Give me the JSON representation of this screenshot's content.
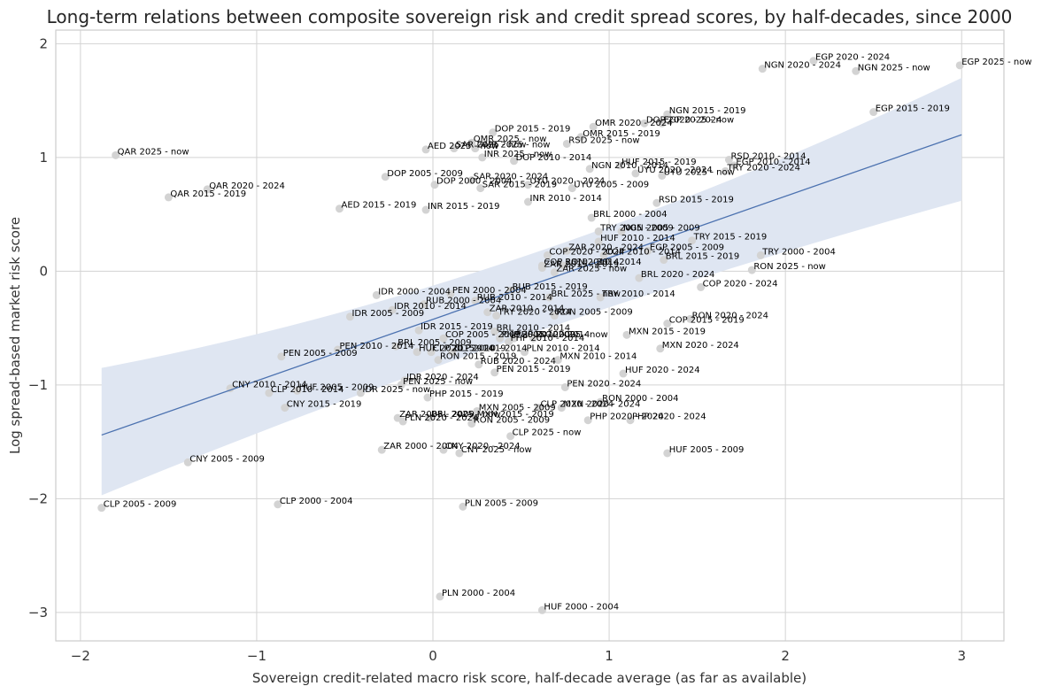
{
  "chart_data": {
    "type": "scatter",
    "title": "Long-term relations between composite sovereign risk and credit spread scores, by half-decades, since 2000",
    "xlabel": "Sovereign credit-related macro risk score, half-decade average (as far as available)",
    "ylabel": "Log spread-based market risk score",
    "xlim": [
      -2.14,
      3.24
    ],
    "ylim": [
      -3.25,
      2.12
    ],
    "xticks": [
      -2,
      -1,
      0,
      1,
      2,
      3
    ],
    "xtick_labels": [
      "−2",
      "−1",
      "0",
      "1",
      "2",
      "3"
    ],
    "yticks": [
      -3,
      -2,
      -1,
      0,
      1,
      2
    ],
    "ytick_labels": [
      "−3",
      "−2",
      "−1",
      "0",
      "1",
      "2"
    ],
    "grid": true,
    "colors": {
      "point": "#d3d3d3",
      "regression": "#4c72b0",
      "band": "#dfe6f2",
      "label": "#000000"
    },
    "regression": {
      "x": [
        -1.88,
        3.0
      ],
      "y": [
        -1.44,
        1.2
      ],
      "band_lower": [
        -1.97,
        0.62
      ],
      "band_upper": [
        -0.85,
        1.7
      ]
    },
    "points": [
      {
        "label": "EGP 2020 - 2024",
        "x": 2.16,
        "y": 1.85
      },
      {
        "label": "EGP 2025 - now",
        "x": 2.99,
        "y": 1.81
      },
      {
        "label": "NGN 2020 - 2024",
        "x": 1.87,
        "y": 1.78
      },
      {
        "label": "NGN 2025 - now",
        "x": 2.4,
        "y": 1.76
      },
      {
        "label": "NGN 2015 - 2019",
        "x": 1.33,
        "y": 1.38
      },
      {
        "label": "EGP 2015 - 2019",
        "x": 2.5,
        "y": 1.4
      },
      {
        "label": "DOP 2020 - 2024",
        "x": 1.2,
        "y": 1.3
      },
      {
        "label": "EGP 2025 - now",
        "x": 1.3,
        "y": 1.3
      },
      {
        "label": "OMR 2020 - 2024",
        "x": 0.91,
        "y": 1.27
      },
      {
        "label": "DOP 2015 - 2019",
        "x": 0.34,
        "y": 1.22
      },
      {
        "label": "OMR 2015 - 2019",
        "x": 0.84,
        "y": 1.18
      },
      {
        "label": "OMR 2025 - now",
        "x": 0.22,
        "y": 1.13
      },
      {
        "label": "RSD 2025 - now",
        "x": 0.76,
        "y": 1.12
      },
      {
        "label": "AED 2025 - now",
        "x": -0.04,
        "y": 1.07
      },
      {
        "label": "SAR 2025 - now",
        "x": 0.12,
        "y": 1.08
      },
      {
        "label": "OMR 2025 - now",
        "x": 0.24,
        "y": 1.08
      },
      {
        "label": "QAR 2025 - now",
        "x": -1.8,
        "y": 1.02
      },
      {
        "label": "INR 2025 - now",
        "x": 0.28,
        "y": 1.0
      },
      {
        "label": "DOP 2010 - 2014",
        "x": 0.46,
        "y": 0.97
      },
      {
        "label": "RSD 2010 - 2014",
        "x": 1.68,
        "y": 0.98
      },
      {
        "label": "EGP 2010 - 2014",
        "x": 1.71,
        "y": 0.93
      },
      {
        "label": "HUF 2015 - 2019",
        "x": 1.06,
        "y": 0.93
      },
      {
        "label": "NGN 2010 - 2014",
        "x": 0.89,
        "y": 0.9
      },
      {
        "label": "TRY 2020 - 2024",
        "x": 1.66,
        "y": 0.88
      },
      {
        "label": "UYU 2020 - 2024",
        "x": 1.15,
        "y": 0.86
      },
      {
        "label": "UYU 2025 - now",
        "x": 1.3,
        "y": 0.84
      },
      {
        "label": "DOP 2005 - 2009",
        "x": -0.27,
        "y": 0.83
      },
      {
        "label": "SAR 2020 - 2024",
        "x": 0.22,
        "y": 0.8
      },
      {
        "label": "DOP 2000 - 2004",
        "x": 0.01,
        "y": 0.76
      },
      {
        "label": "SAR 2015 - 2019",
        "x": 0.27,
        "y": 0.73
      },
      {
        "label": "UYU 2020 - 2024",
        "x": 0.54,
        "y": 0.76
      },
      {
        "label": "UYU 2005 - 2009",
        "x": 0.79,
        "y": 0.73
      },
      {
        "label": "QAR 2020 - 2024",
        "x": -1.28,
        "y": 0.72
      },
      {
        "label": "QAR 2015 - 2019",
        "x": -1.5,
        "y": 0.65
      },
      {
        "label": "INR 2010 - 2014",
        "x": 0.54,
        "y": 0.61
      },
      {
        "label": "RSD 2015 - 2019",
        "x": 1.27,
        "y": 0.6
      },
      {
        "label": "AED 2015 - 2019",
        "x": -0.53,
        "y": 0.55
      },
      {
        "label": "INR 2015 - 2019",
        "x": -0.04,
        "y": 0.54
      },
      {
        "label": "BRL 2000 - 2004",
        "x": 0.9,
        "y": 0.47
      },
      {
        "label": "TRY 2005 - 2009",
        "x": 0.94,
        "y": 0.35
      },
      {
        "label": "NGN 2005 - 2009",
        "x": 1.07,
        "y": 0.35
      },
      {
        "label": "HUF 2010 - 2014",
        "x": 0.94,
        "y": 0.26
      },
      {
        "label": "TRY 2015 - 2019",
        "x": 1.47,
        "y": 0.27
      },
      {
        "label": "ZAR 2020 - 2024",
        "x": 0.76,
        "y": 0.18
      },
      {
        "label": "EGP 2005 - 2009",
        "x": 1.22,
        "y": 0.18
      },
      {
        "label": "COP 2020 - 2024",
        "x": 0.65,
        "y": 0.14
      },
      {
        "label": "COP 2010 - 2014",
        "x": 0.97,
        "y": 0.14
      },
      {
        "label": "TRY 2000 - 2004",
        "x": 1.86,
        "y": 0.14
      },
      {
        "label": "BRL 2015 - 2019",
        "x": 1.31,
        "y": 0.1
      },
      {
        "label": "COP 2010 - 2014",
        "x": 0.62,
        "y": 0.05
      },
      {
        "label": "RON 2010 - 2014",
        "x": 0.74,
        "y": 0.05
      },
      {
        "label": "ZAR 2015 - 2019",
        "x": 0.62,
        "y": 0.03
      },
      {
        "label": "ZAR 2025 - now",
        "x": 0.69,
        "y": -0.01
      },
      {
        "label": "RON 2025 - now",
        "x": 1.81,
        "y": 0.01
      },
      {
        "label": "BRL 2020 - 2024",
        "x": 1.17,
        "y": -0.06
      },
      {
        "label": "COP 2020 - 2024",
        "x": 1.52,
        "y": -0.14
      },
      {
        "label": "RUB 2015 - 2019",
        "x": 0.44,
        "y": -0.17
      },
      {
        "label": "PEN 2000 - 2004",
        "x": 0.1,
        "y": -0.2
      },
      {
        "label": "IDR 2000 - 2004",
        "x": -0.32,
        "y": -0.21
      },
      {
        "label": "BRL 2025 - now",
        "x": 0.66,
        "y": -0.23
      },
      {
        "label": "TRY 2010 - 2014",
        "x": 0.95,
        "y": -0.23
      },
      {
        "label": "RUB 2010 - 2014",
        "x": 0.24,
        "y": -0.26
      },
      {
        "label": "RUB 2000 - 2004",
        "x": -0.05,
        "y": -0.29
      },
      {
        "label": "IDR 2010 - 2014",
        "x": -0.23,
        "y": -0.34
      },
      {
        "label": "ZAR 2010 - 2014",
        "x": 0.31,
        "y": -0.36
      },
      {
        "label": "TRY 2020 - 2024",
        "x": 0.36,
        "y": -0.39
      },
      {
        "label": "IDR 2005 - 2009",
        "x": -0.47,
        "y": -0.4
      },
      {
        "label": "RON 2005 - 2009",
        "x": 0.69,
        "y": -0.39
      },
      {
        "label": "RON 2020 - 2024",
        "x": 1.46,
        "y": -0.42
      },
      {
        "label": "COP 2015 - 2019",
        "x": 1.33,
        "y": -0.46
      },
      {
        "label": "IDR 2015 - 2019",
        "x": -0.08,
        "y": -0.52
      },
      {
        "label": "BRL 2010 - 2014",
        "x": 0.35,
        "y": -0.53
      },
      {
        "label": "MXN 2015 - 2019",
        "x": 1.1,
        "y": -0.56
      },
      {
        "label": "COP 2005 - 2009",
        "x": 0.06,
        "y": -0.59
      },
      {
        "label": "PHP 2005 - 2009",
        "x": 0.38,
        "y": -0.59
      },
      {
        "label": "PHP 2010 - 2014",
        "x": 0.46,
        "y": -0.59
      },
      {
        "label": "MXN 2025 - now",
        "x": 0.57,
        "y": -0.59
      },
      {
        "label": "PHP 2010 - 2014",
        "x": 0.43,
        "y": -0.62
      },
      {
        "label": "BRL 2005 - 2009",
        "x": -0.21,
        "y": -0.66
      },
      {
        "label": "PEN 2010 - 2014",
        "x": -0.54,
        "y": -0.69
      },
      {
        "label": "MXN 2020 - 2024",
        "x": 1.29,
        "y": -0.68
      },
      {
        "label": "HUF 2020 - 2014",
        "x": -0.09,
        "y": -0.71
      },
      {
        "label": "CLP 2015 - 2019",
        "x": -0.01,
        "y": -0.71
      },
      {
        "label": "CLP 2010 - 2014",
        "x": 0.11,
        "y": -0.71
      },
      {
        "label": "PLN 2010 - 2014",
        "x": 0.52,
        "y": -0.71
      },
      {
        "label": "PEN 2005 - 2009",
        "x": -0.86,
        "y": -0.75
      },
      {
        "label": "RON 2015 - 2019",
        "x": 0.03,
        "y": -0.78
      },
      {
        "label": "MXN 2010 - 2014",
        "x": 0.71,
        "y": -0.78
      },
      {
        "label": "RUB 2020 - 2024",
        "x": 0.26,
        "y": -0.82
      },
      {
        "label": "PEN 2015 - 2019",
        "x": 0.35,
        "y": -0.89
      },
      {
        "label": "HUF 2020 - 2024",
        "x": 1.08,
        "y": -0.9
      },
      {
        "label": "IDR 2020 - 2024",
        "x": -0.16,
        "y": -0.96
      },
      {
        "label": "PEN 2025 - now",
        "x": -0.18,
        "y": -1.0
      },
      {
        "label": "PEN 2020 - 2024",
        "x": 0.75,
        "y": -1.02
      },
      {
        "label": "CNY 2010 - 2014",
        "x": -1.15,
        "y": -1.03
      },
      {
        "label": "HUF 2005 - 2009",
        "x": -0.77,
        "y": -1.05
      },
      {
        "label": "CLP 2010 - 2014",
        "x": -0.93,
        "y": -1.07
      },
      {
        "label": "IDR 2025 - now",
        "x": -0.41,
        "y": -1.07
      },
      {
        "label": "PHP 2015 - 2019",
        "x": -0.03,
        "y": -1.11
      },
      {
        "label": "CNY 2015 - 2019",
        "x": -0.84,
        "y": -1.2
      },
      {
        "label": "RON 2000 - 2004",
        "x": 0.95,
        "y": -1.15
      },
      {
        "label": "CLP 2020 - 2024",
        "x": 0.6,
        "y": -1.2
      },
      {
        "label": "MXN 2005 - 2009",
        "x": 0.25,
        "y": -1.23
      },
      {
        "label": "MXN 2020 - 2024",
        "x": 0.73,
        "y": -1.2
      },
      {
        "label": "ZAR 2005 - 2009",
        "x": -0.2,
        "y": -1.29
      },
      {
        "label": "BRL 2025 - now",
        "x": -0.02,
        "y": -1.29
      },
      {
        "label": "MXN 2015 - 2019",
        "x": 0.24,
        "y": -1.29
      },
      {
        "label": "PLN 2020 - 2024",
        "x": -0.17,
        "y": -1.32
      },
      {
        "label": "RON 2005 - 2009",
        "x": 0.22,
        "y": -1.34
      },
      {
        "label": "PHP 2020 - 2024",
        "x": 0.88,
        "y": -1.31
      },
      {
        "label": "PHP 2020 - 2024",
        "x": 1.12,
        "y": -1.31
      },
      {
        "label": "CLP 2025 - now",
        "x": 0.44,
        "y": -1.45
      },
      {
        "label": "ZAR 2000 - 2004",
        "x": -0.29,
        "y": -1.57
      },
      {
        "label": "CNY 2020 - 2024",
        "x": 0.06,
        "y": -1.57
      },
      {
        "label": "CNY 2025 - now",
        "x": 0.15,
        "y": -1.6
      },
      {
        "label": "HUF 2005 - 2009",
        "x": 1.33,
        "y": -1.6
      },
      {
        "label": "CNY 2005 - 2009",
        "x": -1.39,
        "y": -1.68
      },
      {
        "label": "CLP 2005 - 2009",
        "x": -1.88,
        "y": -2.08
      },
      {
        "label": "CLP 2000 - 2004",
        "x": -0.88,
        "y": -2.05
      },
      {
        "label": "PLN 2005 - 2009",
        "x": 0.17,
        "y": -2.07
      },
      {
        "label": "PLN 2000 - 2004",
        "x": 0.04,
        "y": -2.86
      },
      {
        "label": "HUF 2000 - 2004",
        "x": 0.62,
        "y": -2.98
      }
    ]
  }
}
